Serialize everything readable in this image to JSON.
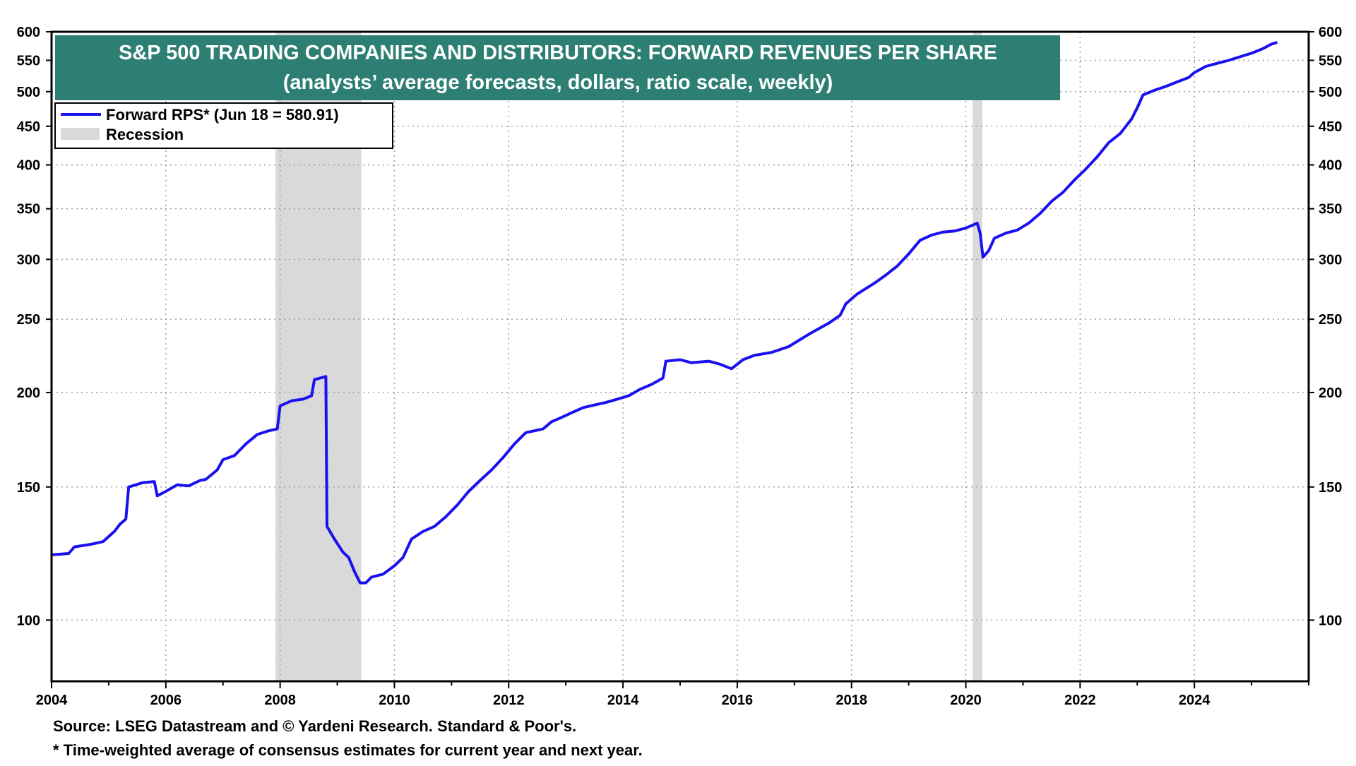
{
  "chart_data": {
    "type": "line",
    "title": "S&P 500 TRADING COMPANIES AND DISTRIBUTORS: FORWARD REVENUES PER SHARE",
    "subtitle": "(analysts’ average forecasts, dollars, ratio scale, weekly)",
    "title_bg_color": "#2e7f73",
    "line_color": "#1a10f0",
    "recession_color": "#d9d9d9",
    "y_scale": "log",
    "ylim": [
      83,
      600
    ],
    "xlim": [
      2004.0,
      2026.0
    ],
    "x_ticks": [
      "2004",
      "2006",
      "2008",
      "2010",
      "2012",
      "2014",
      "2016",
      "2018",
      "2020",
      "2022",
      "2024"
    ],
    "y_ticks": [
      "100",
      "150",
      "200",
      "250",
      "300",
      "350",
      "400",
      "450",
      "500",
      "550",
      "600"
    ],
    "grid": "dotted",
    "legend": {
      "placement": "top-left",
      "entries": [
        "Forward RPS* (Jun 18 = 580.91)",
        "Recession"
      ]
    },
    "recessions": [
      [
        2007.92,
        2009.42
      ],
      [
        2020.12,
        2020.29
      ]
    ],
    "series": [
      {
        "name": "Forward RPS* (Jun 18 = 580.91)",
        "points": [
          [
            2004.0,
            122
          ],
          [
            2004.3,
            122.5
          ],
          [
            2004.4,
            125
          ],
          [
            2004.7,
            126
          ],
          [
            2004.9,
            127
          ],
          [
            2005.1,
            131
          ],
          [
            2005.2,
            134
          ],
          [
            2005.3,
            136
          ],
          [
            2005.35,
            150
          ],
          [
            2005.6,
            152
          ],
          [
            2005.8,
            152.5
          ],
          [
            2005.85,
            146
          ],
          [
            2006.0,
            148
          ],
          [
            2006.2,
            151
          ],
          [
            2006.4,
            150.5
          ],
          [
            2006.6,
            153
          ],
          [
            2006.7,
            153.5
          ],
          [
            2006.9,
            158
          ],
          [
            2007.0,
            163
          ],
          [
            2007.2,
            165
          ],
          [
            2007.4,
            171
          ],
          [
            2007.6,
            176
          ],
          [
            2007.8,
            178
          ],
          [
            2007.95,
            179
          ],
          [
            2008.0,
            192
          ],
          [
            2008.2,
            195
          ],
          [
            2008.4,
            196
          ],
          [
            2008.55,
            198
          ],
          [
            2008.6,
            208
          ],
          [
            2008.8,
            210
          ],
          [
            2008.82,
            133
          ],
          [
            2008.95,
            128
          ],
          [
            2009.1,
            123
          ],
          [
            2009.2,
            121
          ],
          [
            2009.3,
            116
          ],
          [
            2009.4,
            112
          ],
          [
            2009.5,
            112
          ],
          [
            2009.6,
            114
          ],
          [
            2009.8,
            115
          ],
          [
            2010.0,
            118
          ],
          [
            2010.15,
            121
          ],
          [
            2010.3,
            128
          ],
          [
            2010.5,
            131
          ],
          [
            2010.7,
            133
          ],
          [
            2010.9,
            137
          ],
          [
            2011.1,
            142
          ],
          [
            2011.3,
            148
          ],
          [
            2011.5,
            153
          ],
          [
            2011.7,
            158
          ],
          [
            2011.9,
            164
          ],
          [
            2012.1,
            171
          ],
          [
            2012.3,
            177
          ],
          [
            2012.6,
            179
          ],
          [
            2012.75,
            183
          ],
          [
            2012.9,
            185
          ],
          [
            2013.1,
            188
          ],
          [
            2013.3,
            191
          ],
          [
            2013.5,
            192.5
          ],
          [
            2013.7,
            194
          ],
          [
            2013.9,
            196
          ],
          [
            2014.1,
            198
          ],
          [
            2014.3,
            202
          ],
          [
            2014.5,
            205
          ],
          [
            2014.7,
            209
          ],
          [
            2014.75,
            220
          ],
          [
            2015.0,
            221
          ],
          [
            2015.2,
            219
          ],
          [
            2015.5,
            220
          ],
          [
            2015.7,
            218
          ],
          [
            2015.9,
            215
          ],
          [
            2016.1,
            221
          ],
          [
            2016.3,
            224
          ],
          [
            2016.6,
            226
          ],
          [
            2016.9,
            230
          ],
          [
            2017.1,
            235
          ],
          [
            2017.3,
            240
          ],
          [
            2017.6,
            247
          ],
          [
            2017.8,
            253
          ],
          [
            2017.9,
            262
          ],
          [
            2018.1,
            270
          ],
          [
            2018.4,
            279
          ],
          [
            2018.6,
            286
          ],
          [
            2018.8,
            294
          ],
          [
            2019.0,
            305
          ],
          [
            2019.2,
            318
          ],
          [
            2019.4,
            323
          ],
          [
            2019.6,
            326
          ],
          [
            2019.8,
            327
          ],
          [
            2020.0,
            330
          ],
          [
            2020.2,
            335
          ],
          [
            2020.25,
            325
          ],
          [
            2020.3,
            302
          ],
          [
            2020.4,
            308
          ],
          [
            2020.5,
            320
          ],
          [
            2020.7,
            325
          ],
          [
            2020.9,
            328
          ],
          [
            2021.1,
            335
          ],
          [
            2021.3,
            345
          ],
          [
            2021.5,
            358
          ],
          [
            2021.7,
            368
          ],
          [
            2021.9,
            382
          ],
          [
            2022.1,
            395
          ],
          [
            2022.3,
            410
          ],
          [
            2022.5,
            428
          ],
          [
            2022.7,
            440
          ],
          [
            2022.9,
            460
          ],
          [
            2023.0,
            476
          ],
          [
            2023.1,
            495
          ],
          [
            2023.3,
            502
          ],
          [
            2023.5,
            508
          ],
          [
            2023.7,
            515
          ],
          [
            2023.9,
            522
          ],
          [
            2024.0,
            530
          ],
          [
            2024.2,
            540
          ],
          [
            2024.4,
            545
          ],
          [
            2024.6,
            550
          ],
          [
            2024.8,
            556
          ],
          [
            2025.0,
            562
          ],
          [
            2025.2,
            570
          ],
          [
            2025.35,
            578
          ],
          [
            2025.45,
            580.91
          ]
        ]
      }
    ]
  },
  "footnotes": {
    "source": "Source: LSEG Datastream and © Yardeni Research. Standard & Poor's.",
    "note": "* Time-weighted average of consensus estimates for current year and next year."
  }
}
